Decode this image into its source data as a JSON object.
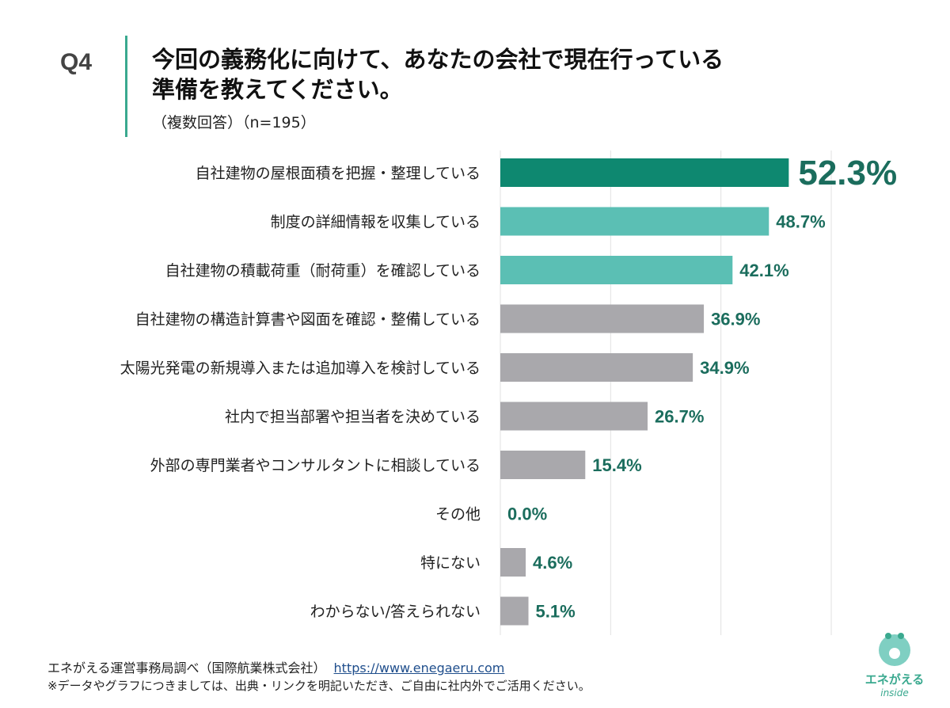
{
  "header": {
    "q_label": "Q4",
    "title_line1": "今回の義務化に向けて、あなたの会社で現在行っている",
    "title_line2": "準備を教えてください。",
    "subtitle": "（複数回答）（n=195）"
  },
  "chart_data": {
    "type": "bar",
    "orientation": "horizontal",
    "xlim": [
      0,
      60
    ],
    "grid": true,
    "categories": [
      "自社建物の屋根面積を把握・整理している",
      "制度の詳細情報を収集している",
      "自社建物の積載荷重（耐荷重）を確認している",
      "自社建物の構造計算書や図面を確認・整備している",
      "太陽光発電の新規導入または追加導入を検討している",
      "社内で担当部署や担当者を決めている",
      "外部の専門業者やコンサルタントに相談している",
      "その他",
      "特にない",
      "わからない/答えられない"
    ],
    "values": [
      52.3,
      48.7,
      42.1,
      36.9,
      34.9,
      26.7,
      15.4,
      0.0,
      4.6,
      5.1
    ],
    "data_labels": [
      "52.3%",
      "48.7%",
      "42.1%",
      "36.9%",
      "34.9%",
      "26.7%",
      "15.4%",
      "0.0%",
      "4.6%",
      "5.1%"
    ],
    "colors": [
      "#0e8870",
      "#5bbfb4",
      "#5bbfb4",
      "#a9a8ac",
      "#a9a8ac",
      "#a9a8ac",
      "#a9a8ac",
      "#a9a8ac",
      "#a9a8ac",
      "#a9a8ac"
    ],
    "label_color": "#1b6d5d"
  },
  "footer": {
    "source": "エネがえる運営事務局調べ（国際航業株式会社）",
    "url": "https://www.enegaeru.com",
    "note": "※データやグラフにつきましては、出典・リンクを明記いただき、ご自由に社内外でご活用ください。"
  },
  "logo": {
    "text1": "エネがえる",
    "text2": "inside"
  }
}
